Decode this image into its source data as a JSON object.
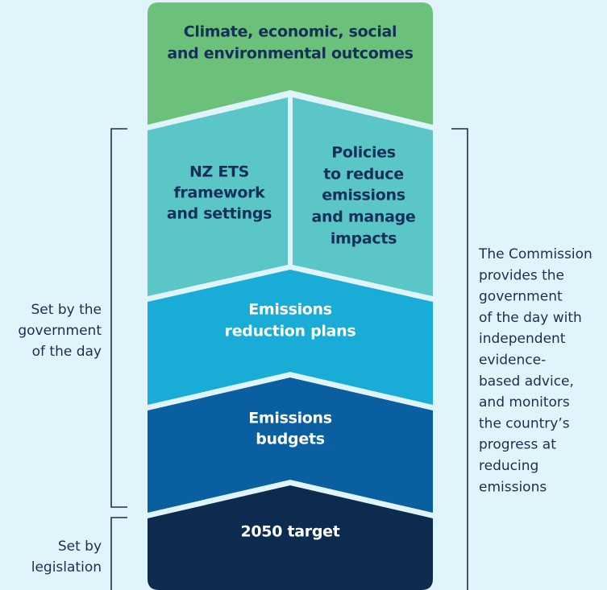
{
  "blocks": [
    {
      "lines": [
        "Climate, economic, social",
        "and environmental outcomes"
      ]
    },
    {
      "lines": [
        "NZ ETS",
        "framework",
        "and settings"
      ]
    },
    {
      "lines": [
        "Policies",
        "to reduce",
        "emissions",
        "and manage",
        "impacts"
      ]
    },
    {
      "lines": [
        "Emissions",
        "reduction plans"
      ]
    },
    {
      "lines": [
        "Emissions",
        "budgets"
      ]
    },
    {
      "lines": [
        "2050 target"
      ]
    }
  ],
  "left_labels": [
    {
      "lines": [
        "Set by the",
        "government",
        "of the day"
      ]
    },
    {
      "lines": [
        "Set by",
        "legislation"
      ]
    }
  ],
  "right_label": {
    "lines": [
      "The Commission",
      "provides the",
      "government",
      "of the day with",
      "independent",
      "evidence-",
      "based advice,",
      "and monitors",
      "the country’s",
      "progress at",
      "reducing",
      "emissions"
    ]
  }
}
